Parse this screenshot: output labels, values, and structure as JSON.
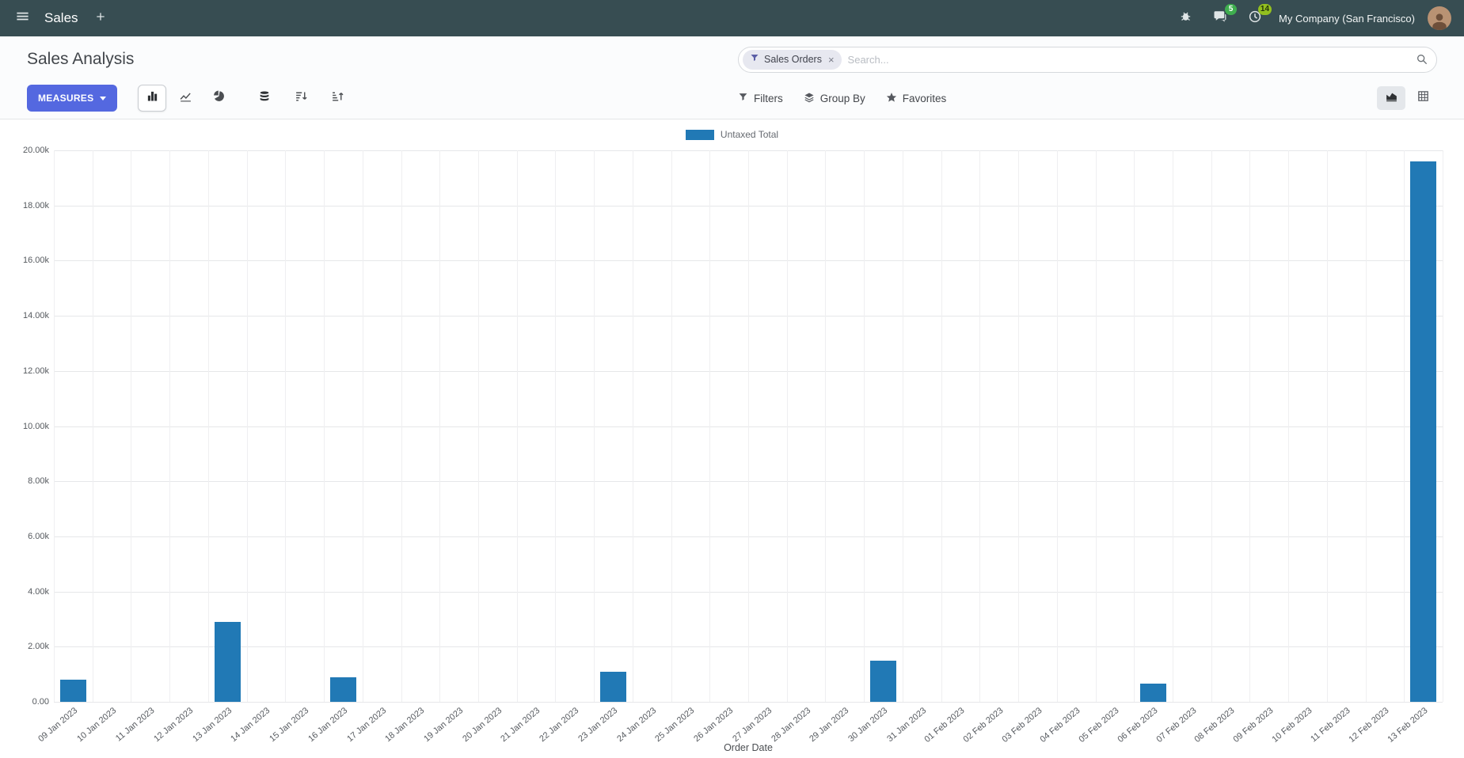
{
  "navbar": {
    "app_name": "Sales",
    "company": "My Company (San Francisco)",
    "badges": {
      "messages": "5",
      "activities": "14"
    }
  },
  "control_panel": {
    "title": "Sales Analysis",
    "measures_button": "MEASURES",
    "search": {
      "facet_label": "Sales Orders",
      "placeholder": "Search...",
      "clear": "×"
    },
    "buttons": {
      "filters": "Filters",
      "group_by": "Group By",
      "favorites": "Favorites"
    }
  },
  "chart_data": {
    "type": "bar",
    "title": "",
    "xlabel": "Order Date",
    "ylabel": "",
    "ylim": [
      0,
      20000
    ],
    "y_tick_step": 2000,
    "y_tick_labels": [
      "0.00",
      "2.00k",
      "4.00k",
      "6.00k",
      "8.00k",
      "10.00k",
      "12.00k",
      "14.00k",
      "16.00k",
      "18.00k",
      "20.00k"
    ],
    "grid": true,
    "legend_position": "top",
    "categories": [
      "09 Jan 2023",
      "10 Jan 2023",
      "11 Jan 2023",
      "12 Jan 2023",
      "13 Jan 2023",
      "14 Jan 2023",
      "15 Jan 2023",
      "16 Jan 2023",
      "17 Jan 2023",
      "18 Jan 2023",
      "19 Jan 2023",
      "20 Jan 2023",
      "21 Jan 2023",
      "22 Jan 2023",
      "23 Jan 2023",
      "24 Jan 2023",
      "25 Jan 2023",
      "26 Jan 2023",
      "27 Jan 2023",
      "28 Jan 2023",
      "29 Jan 2023",
      "30 Jan 2023",
      "31 Jan 2023",
      "01 Feb 2023",
      "02 Feb 2023",
      "03 Feb 2023",
      "04 Feb 2023",
      "05 Feb 2023",
      "06 Feb 2023",
      "07 Feb 2023",
      "08 Feb 2023",
      "09 Feb 2023",
      "10 Feb 2023",
      "11 Feb 2023",
      "12 Feb 2023",
      "13 Feb 2023"
    ],
    "series": [
      {
        "name": "Untaxed Total",
        "color": "#2179b5",
        "values": [
          800,
          0,
          0,
          0,
          2900,
          0,
          0,
          900,
          0,
          0,
          0,
          0,
          0,
          0,
          1080,
          0,
          0,
          0,
          0,
          0,
          0,
          1500,
          0,
          0,
          0,
          0,
          0,
          0,
          650,
          0,
          0,
          0,
          0,
          0,
          0,
          19600
        ]
      }
    ]
  },
  "colors": {
    "navbar_bg": "#374d52",
    "primary_button": "#5468e0",
    "bar": "#2179b5",
    "messages_badge": "#3fae4f",
    "activities_badge": "#93c01f"
  }
}
